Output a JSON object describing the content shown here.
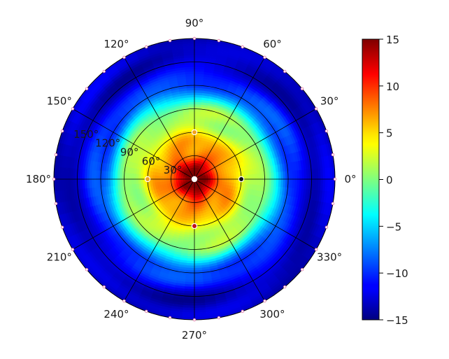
{
  "chart_data": {
    "type": "heatmap",
    "projection": "polar",
    "title": "",
    "angular_ticks": [
      "0°",
      "30°",
      "60°",
      "90°",
      "120°",
      "150°",
      "180°",
      "210°",
      "240°",
      "270°",
      "300°",
      "330°"
    ],
    "radial_ticks": [
      "30°",
      "60°",
      "90°",
      "120°",
      "150°"
    ],
    "radial_tick_values": [
      30,
      60,
      90,
      120,
      150
    ],
    "rlim": [
      0,
      180
    ],
    "grid": true,
    "colorbar": {
      "colormap": "jet",
      "vmin": -15,
      "vmax": 15,
      "ticks": [
        "15",
        "10",
        "5",
        "0",
        "−5",
        "−10",
        "−15"
      ]
    },
    "profile": {
      "radius": [
        0,
        10,
        20,
        30,
        45,
        60,
        75,
        90,
        105,
        120,
        140,
        160,
        180
      ],
      "value": [
        15,
        14.5,
        12.5,
        9,
        6,
        4,
        2,
        0,
        -4,
        -9,
        -11.5,
        -13,
        -13.5
      ]
    },
    "markers": [
      {
        "angle": 0,
        "radius": 60,
        "color": "#111111"
      },
      {
        "angle": 90,
        "radius": 60,
        "color": "#f2a31b"
      },
      {
        "angle": 180,
        "radius": 60,
        "color": "#f2a31b"
      },
      {
        "angle": 270,
        "radius": 60,
        "color": "#c0101a"
      },
      {
        "angle": 0,
        "radius": 0,
        "color": "#ffffff"
      }
    ]
  }
}
